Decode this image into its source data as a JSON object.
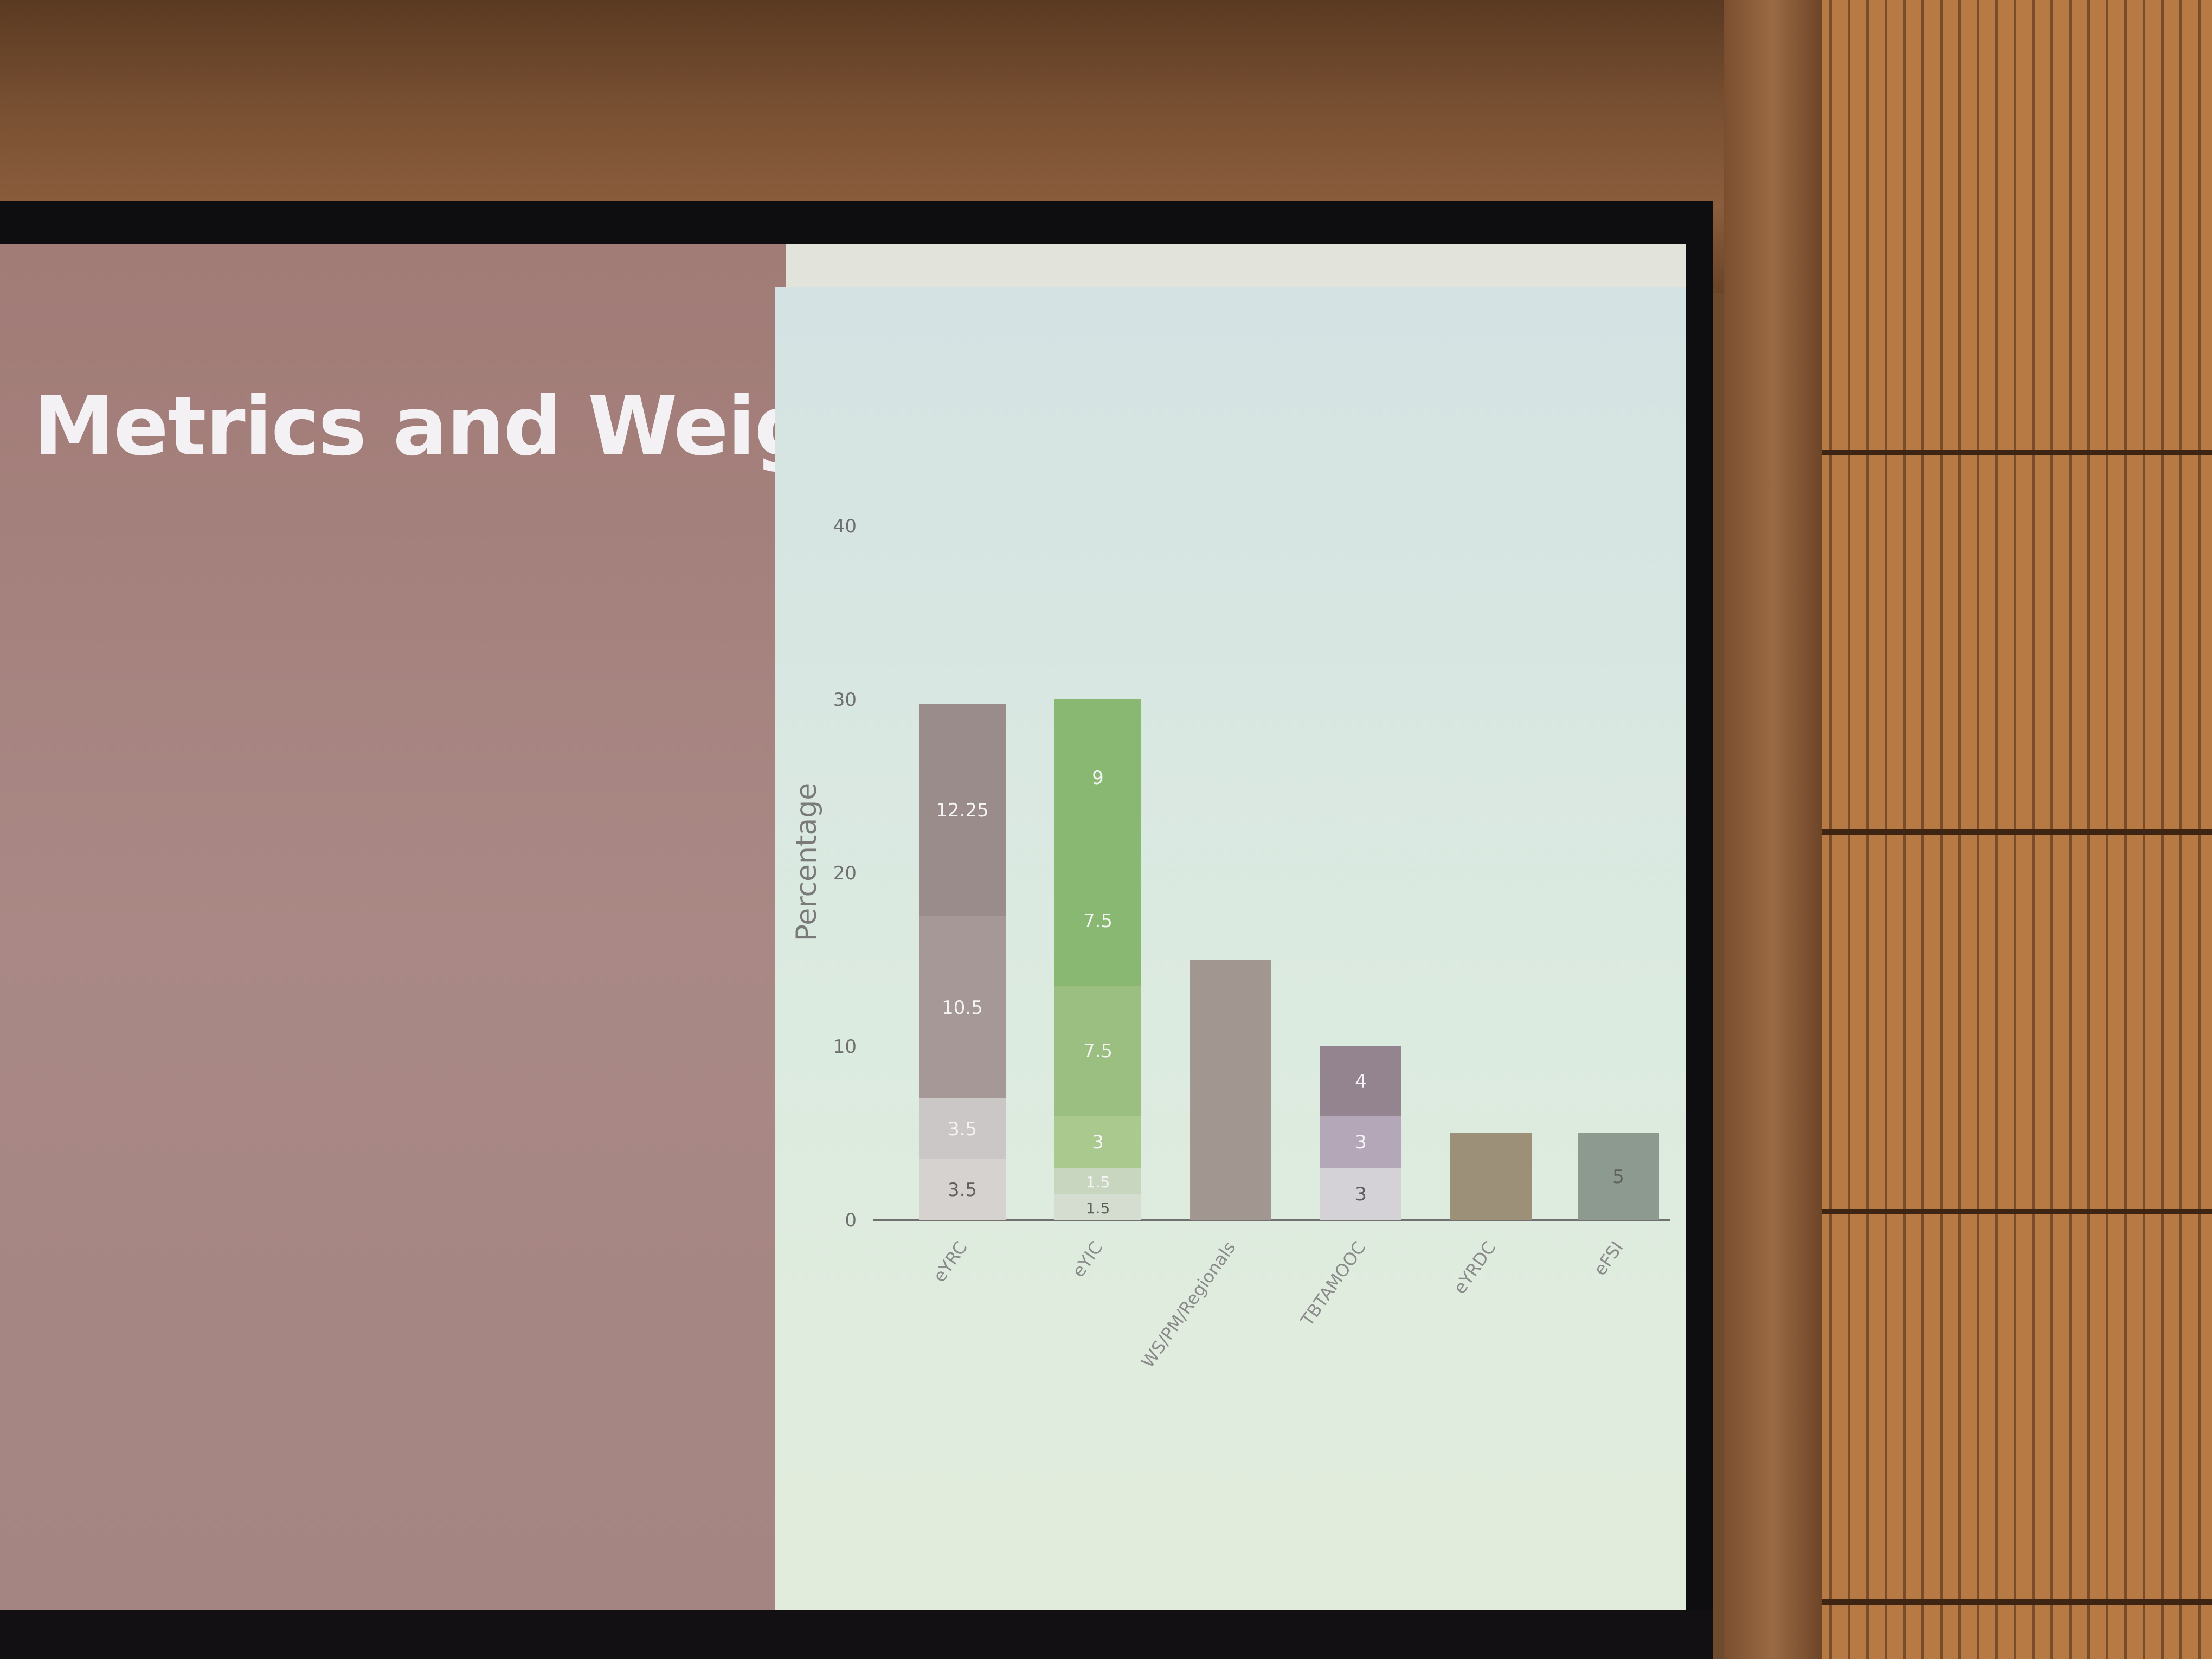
{
  "slide": {
    "title": "Metrics and Weights"
  },
  "colors": {
    "eYRC": [
      "#d5d2cf",
      "#ccc7c7",
      "#a59896",
      "#9a8c8b"
    ],
    "eYIC": [
      "#d5dcd0",
      "#c8d6c0",
      "#a9c98f",
      "#9abf81",
      "#88b872"
    ],
    "WSPMRegionals": [
      "#a19690"
    ],
    "TBTAMOOC": [
      "#d4d2d6",
      "#b4a7b8",
      "#948490"
    ],
    "eYRDC": [
      "#9c9078"
    ],
    "eFSI": [
      "#8d9a90"
    ],
    "axis": "#707070",
    "tick_text": "#6f6f6f"
  },
  "chart_data": {
    "type": "bar",
    "stacked": true,
    "ylabel": "Percentage",
    "ylim": [
      0,
      40
    ],
    "yticks": [
      "0",
      "10",
      "20",
      "30",
      "40"
    ],
    "categories": [
      "eYRC",
      "eYIC",
      "WS/PM/Regionals",
      "TBTAMOOC",
      "eYRDC",
      "eFSI"
    ],
    "stacks": [
      {
        "category": "eYRC",
        "segments": [
          {
            "value": 3.5,
            "label": "3.5"
          },
          {
            "value": 3.5,
            "label": "3.5"
          },
          {
            "value": 10.5,
            "label": "10.5"
          },
          {
            "value": 12.25,
            "label": "12.25"
          }
        ]
      },
      {
        "category": "eYIC",
        "segments": [
          {
            "value": 1.5,
            "label": "1.5"
          },
          {
            "value": 1.5,
            "label": "1.5"
          },
          {
            "value": 3,
            "label": "3"
          },
          {
            "value": 7.5,
            "label": "7.5"
          },
          {
            "value": 7.5,
            "label": "7.5"
          },
          {
            "value": 9,
            "label": "9"
          }
        ]
      },
      {
        "category": "WS/PM/Regionals",
        "segments": [
          {
            "value": 15,
            "label": ""
          }
        ]
      },
      {
        "category": "TBTAMOOC",
        "segments": [
          {
            "value": 3,
            "label": "3"
          },
          {
            "value": 3,
            "label": "3"
          },
          {
            "value": 4,
            "label": "4"
          }
        ]
      },
      {
        "category": "eYRDC",
        "segments": [
          {
            "value": 5,
            "label": ""
          }
        ]
      },
      {
        "category": "eFSI",
        "segments": [
          {
            "value": 5,
            "label": "5"
          }
        ]
      }
    ]
  }
}
